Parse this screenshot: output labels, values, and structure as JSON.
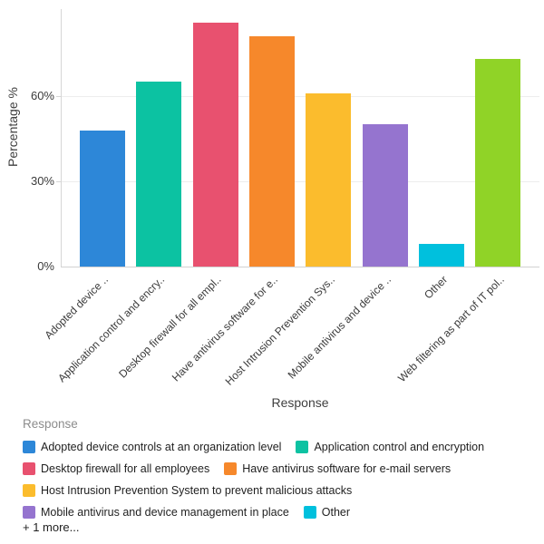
{
  "chart_data": {
    "type": "bar",
    "title": "",
    "xlabel": "Response",
    "ylabel": "Percentage %",
    "ylim": [
      0,
      90
    ],
    "grid": "horizontal",
    "legend_position": "bottom",
    "yticks": [
      {
        "value": 0,
        "label": "0%"
      },
      {
        "value": 30,
        "label": "30%"
      },
      {
        "value": 60,
        "label": "60%"
      }
    ],
    "categories": [
      "Adopted device ..",
      "Application control and encry..",
      "Desktop firewall for all empl..",
      "Have antivirus software for e..",
      "Host Intrusion Prevention Sys..",
      "Mobile antivirus and device ..",
      "Other",
      "Web filtering as part of IT pol.."
    ],
    "values": [
      48,
      65,
      86,
      81,
      61,
      50,
      8,
      73
    ],
    "colors": [
      "#2d87d8",
      "#0cc2a2",
      "#e8516f",
      "#f6882b",
      "#fbbc2d",
      "#9574cf",
      "#00c0dd",
      "#90d327"
    ]
  },
  "legend": {
    "title": "Response",
    "items": [
      {
        "label": "Adopted device controls at an organization level",
        "color": "#2d87d8"
      },
      {
        "label": "Application control and encryption",
        "color": "#0cc2a2"
      },
      {
        "label": "Desktop firewall for all employees",
        "color": "#e8516f"
      },
      {
        "label": "Have antivirus software for e-mail servers",
        "color": "#f6882b"
      },
      {
        "label": "Host Intrusion Prevention System to prevent malicious attacks",
        "color": "#fbbc2d"
      },
      {
        "label": "Mobile antivirus and device management in place",
        "color": "#9574cf"
      },
      {
        "label": "Other",
        "color": "#00c0dd"
      }
    ],
    "rows": [
      [
        0,
        1
      ],
      [
        2,
        3
      ],
      [
        4
      ],
      [
        5,
        6
      ]
    ],
    "more_label": "+ 1 more..."
  }
}
